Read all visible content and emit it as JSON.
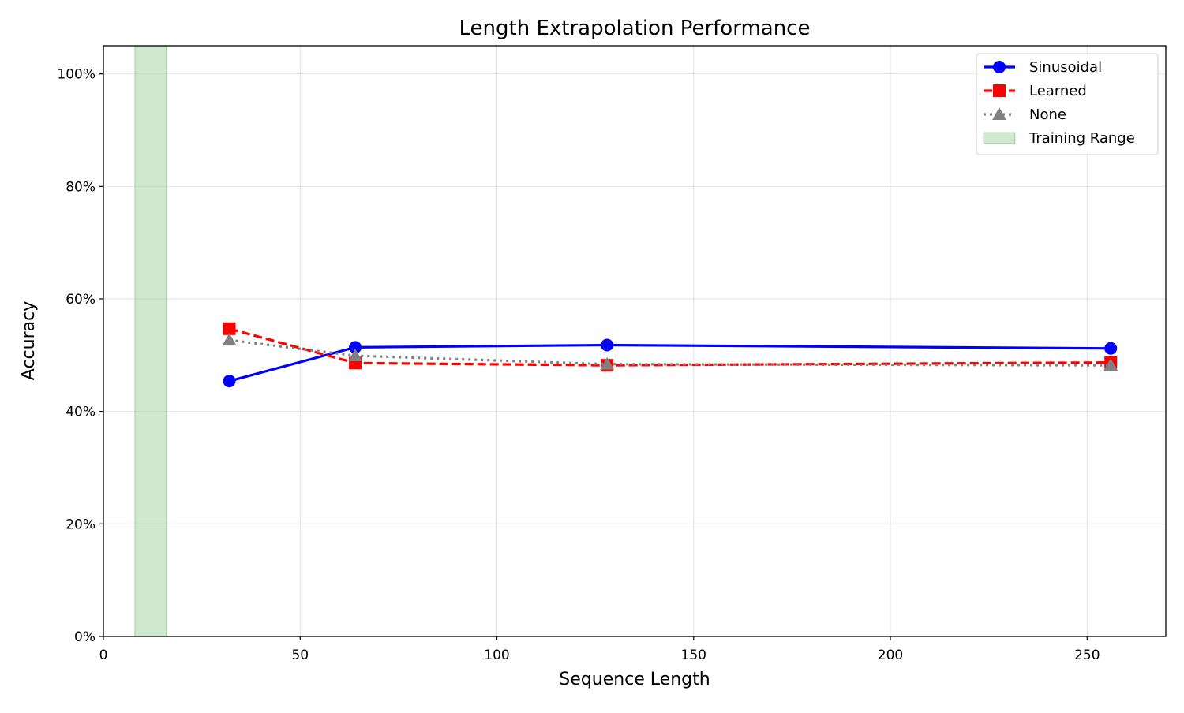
{
  "chart_data": {
    "type": "line",
    "title": "Length Extrapolation Performance",
    "xlabel": "Sequence Length",
    "ylabel": "Accuracy",
    "xlim": [
      0,
      270
    ],
    "ylim": [
      0,
      1.05
    ],
    "xticks": [
      0,
      50,
      100,
      150,
      200,
      250
    ],
    "xtick_labels": [
      "0",
      "50",
      "100",
      "150",
      "200",
      "250"
    ],
    "yticks": [
      0,
      0.2,
      0.4,
      0.6,
      0.8,
      1.0
    ],
    "ytick_labels": [
      "0%",
      "20%",
      "40%",
      "60%",
      "80%",
      "100%"
    ],
    "grid": true,
    "legend_position": "top-right",
    "x": [
      32,
      64,
      128,
      256
    ],
    "series": [
      {
        "name": "Sinusoidal",
        "values": [
          0.454,
          0.514,
          0.518,
          0.512
        ],
        "color": "#0000ff",
        "line_style": "solid",
        "marker": "circle"
      },
      {
        "name": "Learned",
        "values": [
          0.547,
          0.486,
          0.482,
          0.487
        ],
        "color": "#ff0000",
        "line_style": "dashed",
        "marker": "square"
      },
      {
        "name": "None",
        "values": [
          0.527,
          0.499,
          0.484,
          0.482
        ],
        "color": "#808080",
        "line_style": "dotted",
        "marker": "triangle"
      }
    ],
    "shaded_region": {
      "name": "Training Range",
      "x_range": [
        8,
        16
      ],
      "color": "#2ca02c"
    }
  }
}
